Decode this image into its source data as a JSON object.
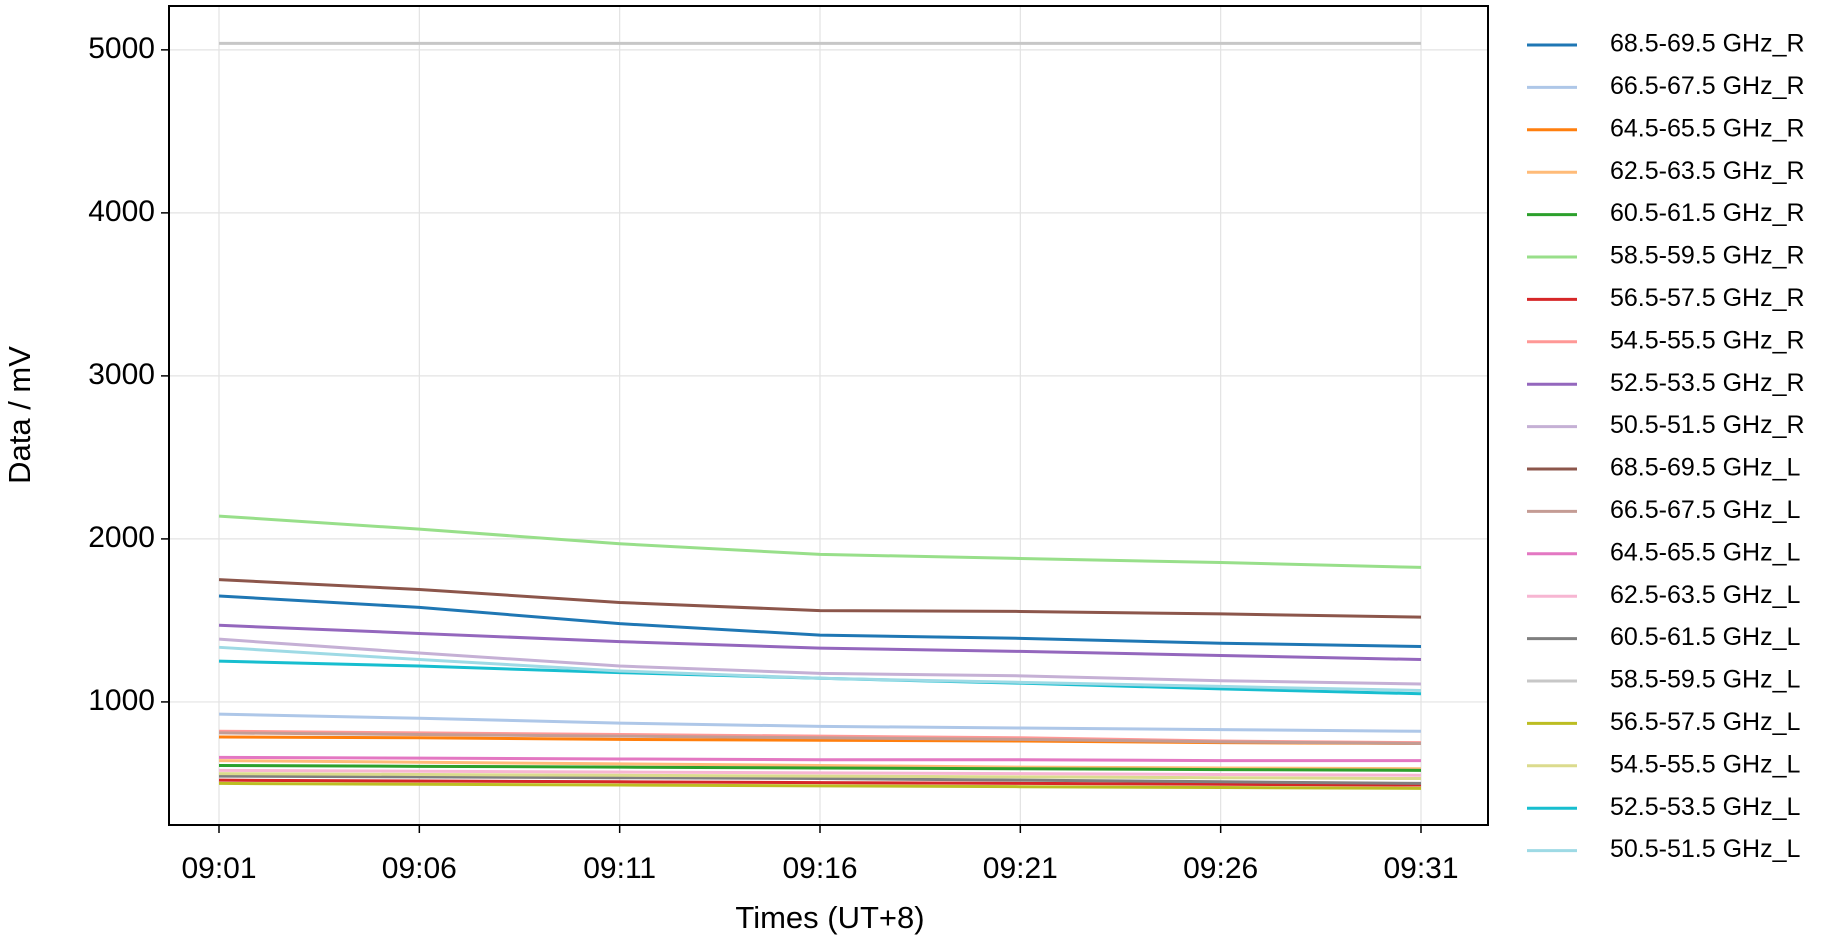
{
  "chart_data": {
    "type": "line",
    "x_label": "Times (UT+8)",
    "y_label": "Data / mV",
    "categories": [
      "09:01",
      "09:06",
      "09:11",
      "09:16",
      "09:21",
      "09:26",
      "09:31"
    ],
    "ylim": [
      245,
      5269
    ],
    "yticks": [
      1000,
      2000,
      3000,
      4000,
      5000
    ],
    "grid": true,
    "series": [
      {
        "name": "68.5-69.5 GHz_R",
        "color": "#1f77b4",
        "values": [
          1650,
          1580,
          1480,
          1410,
          1390,
          1360,
          1340
        ]
      },
      {
        "name": "66.5-67.5 GHz_R",
        "color": "#aec7e8",
        "values": [
          925,
          900,
          870,
          850,
          840,
          830,
          820
        ]
      },
      {
        "name": "64.5-65.5 GHz_R",
        "color": "#ff7f0e",
        "values": [
          785,
          780,
          770,
          765,
          760,
          750,
          745
        ]
      },
      {
        "name": "62.5-63.5 GHz_R",
        "color": "#ffbb78",
        "values": [
          640,
          630,
          620,
          610,
          600,
          595,
          590
        ]
      },
      {
        "name": "60.5-61.5 GHz_R",
        "color": "#2ca02c",
        "values": [
          610,
          605,
          600,
          595,
          590,
          585,
          580
        ]
      },
      {
        "name": "58.5-59.5 GHz_R",
        "color": "#98df8a",
        "values": [
          2140,
          2060,
          1970,
          1905,
          1880,
          1855,
          1825
        ]
      },
      {
        "name": "56.5-57.5 GHz_R",
        "color": "#d62728",
        "values": [
          520,
          515,
          510,
          505,
          500,
          495,
          490
        ]
      },
      {
        "name": "54.5-55.5 GHz_R",
        "color": "#ff9896",
        "values": [
          820,
          810,
          800,
          790,
          780,
          760,
          750
        ]
      },
      {
        "name": "52.5-53.5 GHz_R",
        "color": "#9467bd",
        "values": [
          1470,
          1420,
          1370,
          1330,
          1310,
          1285,
          1260
        ]
      },
      {
        "name": "50.5-51.5 GHz_R",
        "color": "#c5b0d5",
        "values": [
          1385,
          1300,
          1220,
          1175,
          1160,
          1130,
          1110
        ]
      },
      {
        "name": "68.5-69.5 GHz_L",
        "color": "#8c564b",
        "values": [
          1750,
          1690,
          1610,
          1560,
          1555,
          1540,
          1520
        ]
      },
      {
        "name": "66.5-67.5 GHz_L",
        "color": "#c49c94",
        "values": [
          810,
          800,
          790,
          780,
          770,
          755,
          745
        ]
      },
      {
        "name": "64.5-65.5 GHz_L",
        "color": "#e377c2",
        "values": [
          660,
          655,
          650,
          645,
          645,
          640,
          640
        ]
      },
      {
        "name": "62.5-63.5 GHz_L",
        "color": "#f7b6d2",
        "values": [
          580,
          575,
          570,
          565,
          560,
          555,
          550
        ]
      },
      {
        "name": "60.5-61.5 GHz_L",
        "color": "#7f7f7f",
        "values": [
          545,
          540,
          535,
          530,
          520,
          510,
          500
        ]
      },
      {
        "name": "58.5-59.5 GHz_L",
        "color": "#c7c7c7",
        "values": [
          5040,
          5040,
          5040,
          5040,
          5040,
          5040,
          5040
        ]
      },
      {
        "name": "56.5-57.5 GHz_L",
        "color": "#bcbd22",
        "values": [
          500,
          495,
          490,
          485,
          480,
          475,
          470
        ]
      },
      {
        "name": "54.5-55.5 GHz_L",
        "color": "#dbdb8d",
        "values": [
          560,
          555,
          550,
          545,
          540,
          535,
          530
        ]
      },
      {
        "name": "52.5-53.5 GHz_L",
        "color": "#17becf",
        "values": [
          1250,
          1220,
          1180,
          1145,
          1115,
          1080,
          1050
        ]
      },
      {
        "name": "50.5-51.5 GHz_L",
        "color": "#9edae5",
        "values": [
          1335,
          1260,
          1190,
          1145,
          1120,
          1095,
          1070
        ]
      }
    ]
  }
}
